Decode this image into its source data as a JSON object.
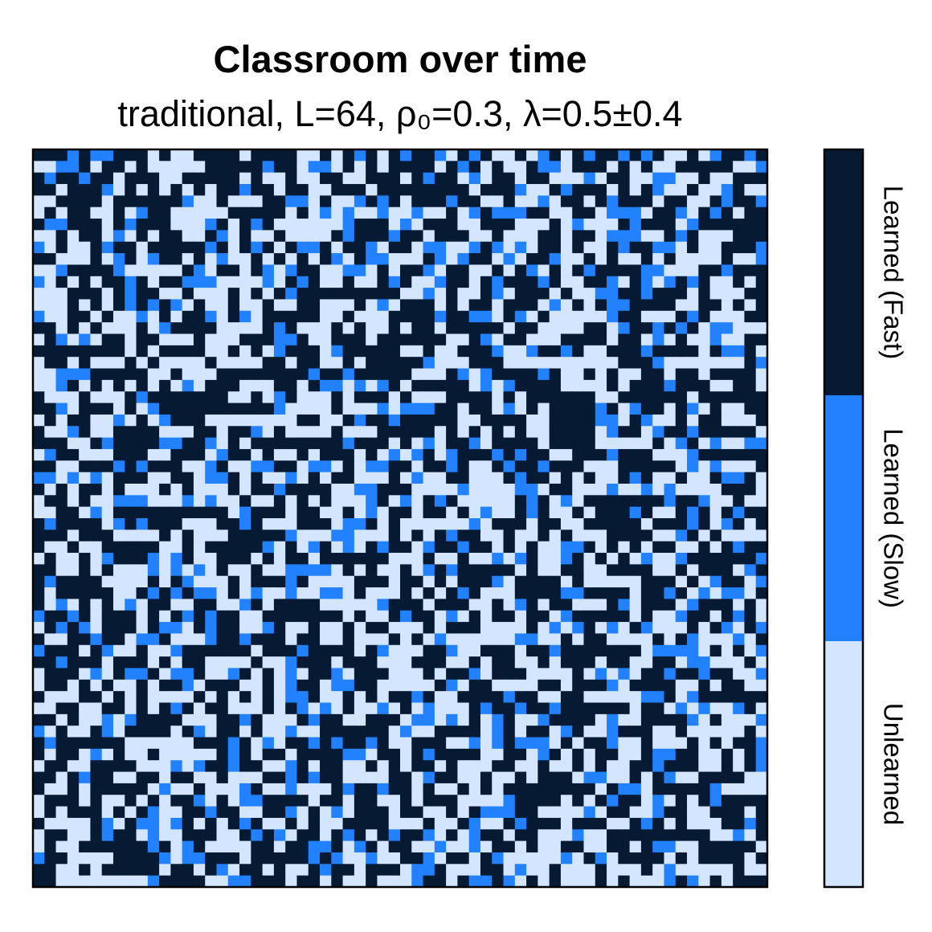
{
  "chart_data": {
    "type": "heatmap",
    "title": "Classroom over time",
    "subtitle": "traditional, L=64, ρ₀=0.3, λ=0.5±0.4",
    "grid_size": 64,
    "categories": [
      "Unlearned",
      "Learned (Slow)",
      "Learned (Fast)"
    ],
    "colors": {
      "Unlearned": "#d3e5ff",
      "Learned (Slow)": "#2281ff",
      "Learned (Fast)": "#061a33"
    },
    "approx_fractions": {
      "Unlearned": 0.38,
      "Learned (Slow)": 0.15,
      "Learned (Fast)": 0.47
    },
    "legend": {
      "placement": "right",
      "type": "discrete colorbar"
    }
  }
}
